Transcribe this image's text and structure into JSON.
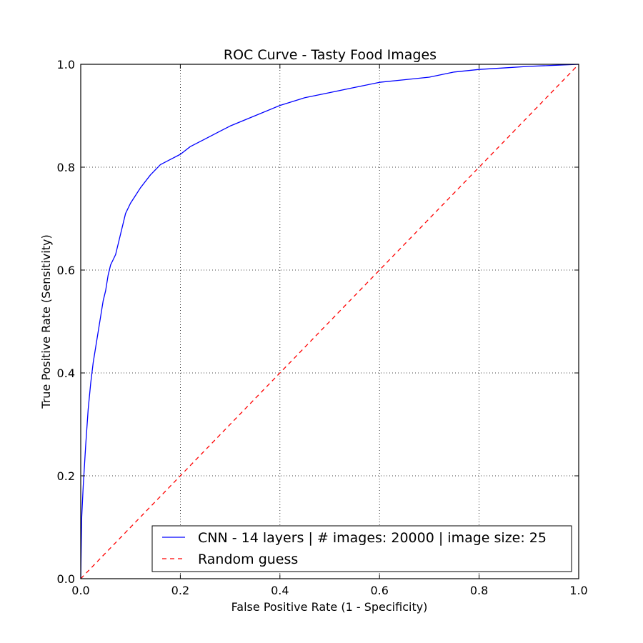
{
  "chart_data": {
    "type": "line",
    "title": "ROC Curve - Tasty Food Images",
    "xlabel": "False Positive Rate (1 - Specificity)",
    "ylabel": "True Positive Rate (Sensitivity)",
    "xlim": [
      0.0,
      1.0
    ],
    "ylim": [
      0.0,
      1.0
    ],
    "xticks": [
      "0.0",
      "0.2",
      "0.4",
      "0.6",
      "0.8",
      "1.0"
    ],
    "yticks": [
      "0.0",
      "0.2",
      "0.4",
      "0.6",
      "0.8",
      "1.0"
    ],
    "grid": true,
    "grid_style": "dotted",
    "legend_position": "lower-right",
    "series": [
      {
        "name": "CNN - 14 layers | # images: 20000 | image size: 25",
        "color": "#0000ff",
        "line_style": "solid",
        "x": [
          0.0,
          0.002,
          0.005,
          0.01,
          0.015,
          0.02,
          0.025,
          0.03,
          0.035,
          0.04,
          0.045,
          0.05,
          0.055,
          0.06,
          0.065,
          0.07,
          0.08,
          0.09,
          0.1,
          0.11,
          0.12,
          0.14,
          0.16,
          0.18,
          0.2,
          0.22,
          0.25,
          0.28,
          0.3,
          0.35,
          0.4,
          0.45,
          0.5,
          0.55,
          0.6,
          0.65,
          0.7,
          0.75,
          0.8,
          0.85,
          0.9,
          0.95,
          1.0
        ],
        "y": [
          0.0,
          0.12,
          0.18,
          0.26,
          0.33,
          0.38,
          0.42,
          0.45,
          0.48,
          0.51,
          0.54,
          0.56,
          0.59,
          0.61,
          0.62,
          0.63,
          0.67,
          0.71,
          0.73,
          0.745,
          0.76,
          0.785,
          0.805,
          0.815,
          0.825,
          0.84,
          0.855,
          0.87,
          0.88,
          0.9,
          0.92,
          0.935,
          0.945,
          0.955,
          0.965,
          0.97,
          0.975,
          0.985,
          0.99,
          0.993,
          0.996,
          0.998,
          1.0
        ]
      },
      {
        "name": "Random guess",
        "color": "#ff0000",
        "line_style": "dashed",
        "x": [
          0.0,
          1.0
        ],
        "y": [
          0.0,
          1.0
        ]
      }
    ]
  }
}
